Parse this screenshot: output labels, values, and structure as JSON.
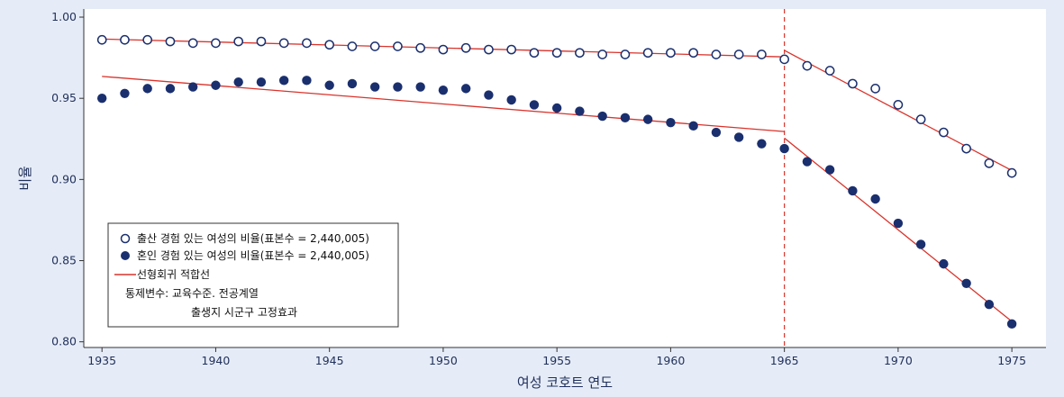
{
  "chart_data": {
    "type": "scatter",
    "xlabel": "여성 코호트 연도",
    "ylabel": "비율",
    "xlim": [
      1934.2,
      1976.5
    ],
    "ylim": [
      0.7965,
      1.005
    ],
    "xticks": [
      1935,
      1940,
      1945,
      1950,
      1955,
      1960,
      1965,
      1970,
      1975
    ],
    "xtick_labels": [
      "1935",
      "1940",
      "1945",
      "1950",
      "1955",
      "1960",
      "1965",
      "1970",
      "1975"
    ],
    "yticks": [
      0.8,
      0.85,
      0.9,
      0.95,
      1.0
    ],
    "ytick_labels": [
      "0.80",
      "0.85",
      "0.90",
      "0.95",
      "1.00"
    ],
    "vline": {
      "x": 1965,
      "color": "#d9332b",
      "style": "dashed"
    },
    "series": [
      {
        "name": "출산 경험 있는 여성의 비율(표본수 = 2,440,005)",
        "marker": "hollow-circle",
        "color": "#1a2f6e",
        "x": [
          1935,
          1936,
          1937,
          1938,
          1939,
          1940,
          1941,
          1942,
          1943,
          1944,
          1945,
          1946,
          1947,
          1948,
          1949,
          1950,
          1951,
          1952,
          1953,
          1954,
          1955,
          1956,
          1957,
          1958,
          1959,
          1960,
          1961,
          1962,
          1963,
          1964,
          1965,
          1966,
          1967,
          1968,
          1969,
          1970,
          1971,
          1972,
          1973,
          1974,
          1975
        ],
        "y": [
          0.986,
          0.986,
          0.986,
          0.985,
          0.984,
          0.984,
          0.985,
          0.985,
          0.984,
          0.984,
          0.983,
          0.982,
          0.982,
          0.982,
          0.981,
          0.98,
          0.981,
          0.98,
          0.98,
          0.978,
          0.978,
          0.978,
          0.977,
          0.977,
          0.978,
          0.978,
          0.978,
          0.977,
          0.977,
          0.977,
          0.974,
          0.97,
          0.967,
          0.959,
          0.956,
          0.946,
          0.937,
          0.929,
          0.919,
          0.91,
          0.904
        ]
      },
      {
        "name": "혼인 경험 있는 여성의 비율(표본수 = 2,440,005)",
        "marker": "filled-circle",
        "color": "#1a2f6e",
        "x": [
          1935,
          1936,
          1937,
          1938,
          1939,
          1940,
          1941,
          1942,
          1943,
          1944,
          1945,
          1946,
          1947,
          1948,
          1949,
          1950,
          1951,
          1952,
          1953,
          1954,
          1955,
          1956,
          1957,
          1958,
          1959,
          1960,
          1961,
          1962,
          1963,
          1964,
          1965,
          1966,
          1967,
          1968,
          1969,
          1970,
          1971,
          1972,
          1973,
          1974,
          1975
        ],
        "y": [
          0.95,
          0.953,
          0.956,
          0.956,
          0.957,
          0.958,
          0.96,
          0.96,
          0.961,
          0.961,
          0.958,
          0.959,
          0.957,
          0.957,
          0.957,
          0.955,
          0.956,
          0.952,
          0.949,
          0.946,
          0.944,
          0.942,
          0.939,
          0.938,
          0.937,
          0.935,
          0.933,
          0.929,
          0.926,
          0.922,
          0.919,
          0.911,
          0.906,
          0.893,
          0.888,
          0.873,
          0.86,
          0.848,
          0.836,
          0.823,
          0.811
        ]
      }
    ],
    "fit_lines": [
      {
        "name": "선형회귀 적합선",
        "color": "#d9332b",
        "x": [
          1935,
          1965
        ],
        "y": [
          0.9865,
          0.9755
        ]
      },
      {
        "name": "선형회귀 적합선",
        "color": "#d9332b",
        "x": [
          1965,
          1975
        ],
        "y": [
          0.9795,
          0.9055
        ]
      },
      {
        "name": "선형회귀 적합선",
        "color": "#d9332b",
        "x": [
          1935,
          1965
        ],
        "y": [
          0.9635,
          0.9295
        ]
      },
      {
        "name": "선형회귀 적합선",
        "color": "#d9332b",
        "x": [
          1965,
          1975
        ],
        "y": [
          0.9255,
          0.8125
        ]
      }
    ],
    "legend": {
      "placement": "bottom-left",
      "items": [
        {
          "marker": "hollow-circle",
          "label": "출산 경험 있는 여성의 비율(표본수 = 2,440,005)"
        },
        {
          "marker": "filled-circle",
          "label": "혼인 경험 있는 여성의 비율(표본수 = 2,440,005)"
        },
        {
          "marker": "line",
          "label": "선형회귀 적합선"
        }
      ],
      "notes": [
        "통제변수: 교육수준. 전공계열",
        "출생지 시군구 고정효과"
      ]
    },
    "colors": {
      "background": "#e6ecf7",
      "plot_bg": "#ffffff",
      "marker": "#1a2f6e",
      "fit": "#d9332b"
    }
  }
}
